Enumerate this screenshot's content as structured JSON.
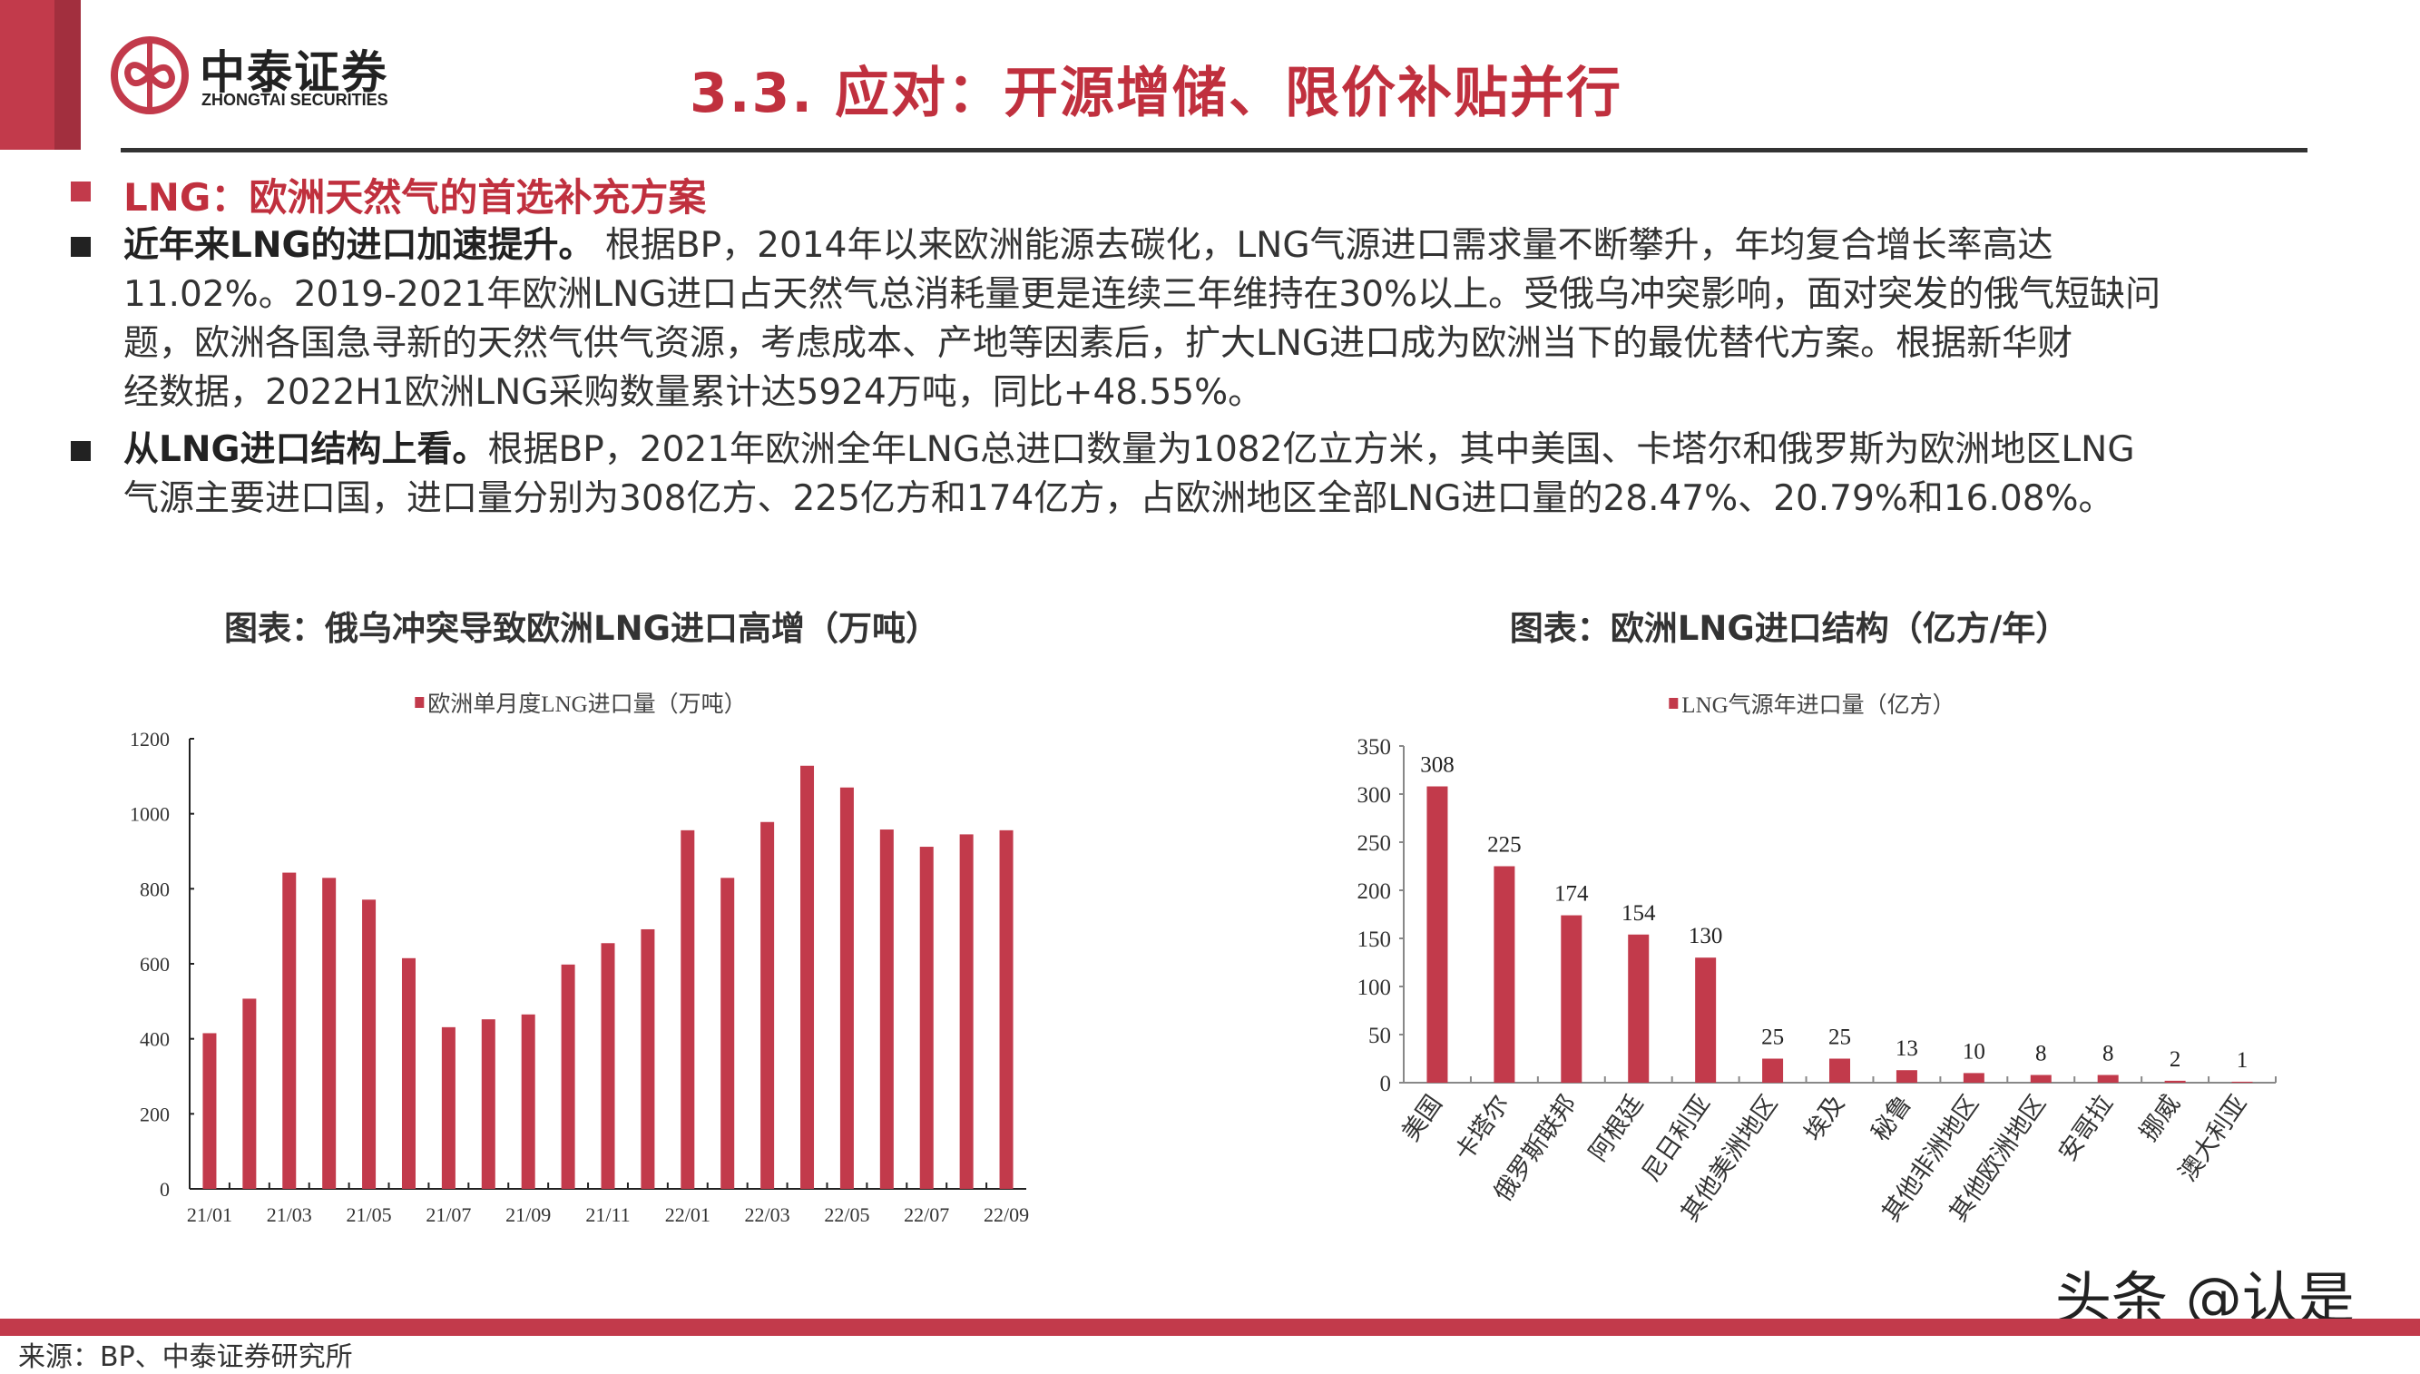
{
  "header": {
    "brand_cn": "中泰证券",
    "brand_en": "ZHONGTAI SECURITIES",
    "title": "3.3.  应对：开源增储、限价补贴并行"
  },
  "section": {
    "subtitle": "LNG：欧洲天然气的首选补充方案",
    "bullets": [
      {
        "lead": "近年来LNG的进口加速提升。",
        "lines": [
          " 根据BP，2014年以来欧洲能源去碳化，LNG气源进口需求量不断攀升，年均复合增长率高达",
          "11.02%。2019-2021年欧洲LNG进口占天然气总消耗量更是连续三年维持在30%以上。受俄乌冲突影响，面对突发的俄气短缺问",
          "题，欧洲各国急寻新的天然气供气资源，考虑成本、产地等因素后，扩大LNG进口成为欧洲当下的最优替代方案。根据新华财",
          "经数据，2022H1欧洲LNG采购数量累计达5924万吨，同比+48.55%。"
        ]
      },
      {
        "lead": "从LNG进口结构上看。",
        "lines": [
          "根据BP，2021年欧洲全年LNG总进口数量为1082亿立方米，其中美国、卡塔尔和俄罗斯为欧洲地区LNG",
          "气源主要进口国，进口量分别为308亿方、225亿方和174亿方，占欧洲地区全部LNG进口量的28.47%、20.79%和16.08%。"
        ]
      }
    ]
  },
  "colors": {
    "accent": "#C23A4B",
    "title_red": "#C0303E",
    "text": "#333333"
  },
  "chart_data": [
    {
      "type": "bar",
      "title": "图表：俄乌冲突导致欧洲LNG进口高增（万吨）",
      "legend": "欧洲单月度LNG进口量（万吨）",
      "legend_position": "top",
      "xlabel": "",
      "ylabel": "",
      "ylim": [
        0,
        1200
      ],
      "yticks": [
        0,
        200,
        400,
        600,
        800,
        1000,
        1200
      ],
      "grid": false,
      "categories": [
        "21/01",
        "21/02",
        "21/03",
        "21/04",
        "21/05",
        "21/06",
        "21/07",
        "21/08",
        "21/09",
        "21/10",
        "21/11",
        "21/12",
        "22/01",
        "22/02",
        "22/03",
        "22/04",
        "22/05",
        "22/06",
        "22/07",
        "22/08",
        "22/09"
      ],
      "xtick_labels": [
        "21/01",
        "21/03",
        "21/05",
        "21/07",
        "21/09",
        "21/11",
        "22/01",
        "22/03",
        "22/05",
        "22/07",
        "22/09"
      ],
      "series": [
        {
          "name": "欧洲单月度LNG进口量（万吨）",
          "values": [
            415,
            507,
            843,
            829,
            771,
            615,
            431,
            452,
            465,
            598,
            655,
            692,
            956,
            829,
            978,
            1128,
            1070,
            958,
            912,
            945,
            956
          ]
        }
      ]
    },
    {
      "type": "bar",
      "title": "图表：欧洲LNG进口结构（亿方/年）",
      "legend": "LNG气源年进口量（亿方）",
      "legend_position": "top",
      "xlabel": "",
      "ylabel": "",
      "ylim": [
        0,
        350
      ],
      "yticks": [
        0,
        50,
        100,
        150,
        200,
        250,
        300,
        350
      ],
      "grid": false,
      "categories": [
        "美国",
        "卡塔尔",
        "俄罗斯联邦",
        "阿根廷",
        "尼日利亚",
        "其他美洲地区",
        "埃及",
        "秘鲁",
        "其他非洲地区",
        "其他欧洲地区",
        "安哥拉",
        "挪威",
        "澳大利亚"
      ],
      "series": [
        {
          "name": "LNG气源年进口量（亿方）",
          "values": [
            308,
            225,
            174,
            154,
            130,
            25,
            25,
            13,
            10,
            8,
            8,
            2,
            1
          ]
        }
      ],
      "data_labels": true
    }
  ],
  "footer": {
    "source": "来源：BP、中泰证券研究所",
    "watermark": "头条 @认是"
  }
}
